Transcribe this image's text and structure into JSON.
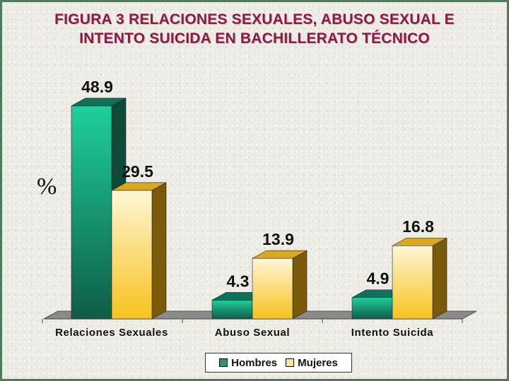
{
  "chart_data": {
    "type": "bar",
    "title_lines": [
      "FIGURA 3 RELACIONES SEXUALES, ABUSO SEXUAL E",
      "INTENTO SUICIDA EN BACHILLERATO TÉCNICO"
    ],
    "ylabel": "%",
    "xlabel": "",
    "categories": [
      "Relaciones Sexuales",
      "Abuso Sexual",
      "Intento Suicida"
    ],
    "series": [
      {
        "name": "Hombres",
        "values": [
          48.9,
          4.3,
          4.9
        ],
        "color": "#1f9a78"
      },
      {
        "name": "Mujeres",
        "values": [
          29.5,
          13.9,
          16.8
        ],
        "color": "#fbe39a"
      }
    ],
    "ylim": [
      0,
      50
    ],
    "grid": false,
    "legend_position": "bottom",
    "three_d": true
  },
  "colors": {
    "title": "#8b1a4a",
    "frame": "#4f7a5c",
    "floor": "#808080"
  }
}
